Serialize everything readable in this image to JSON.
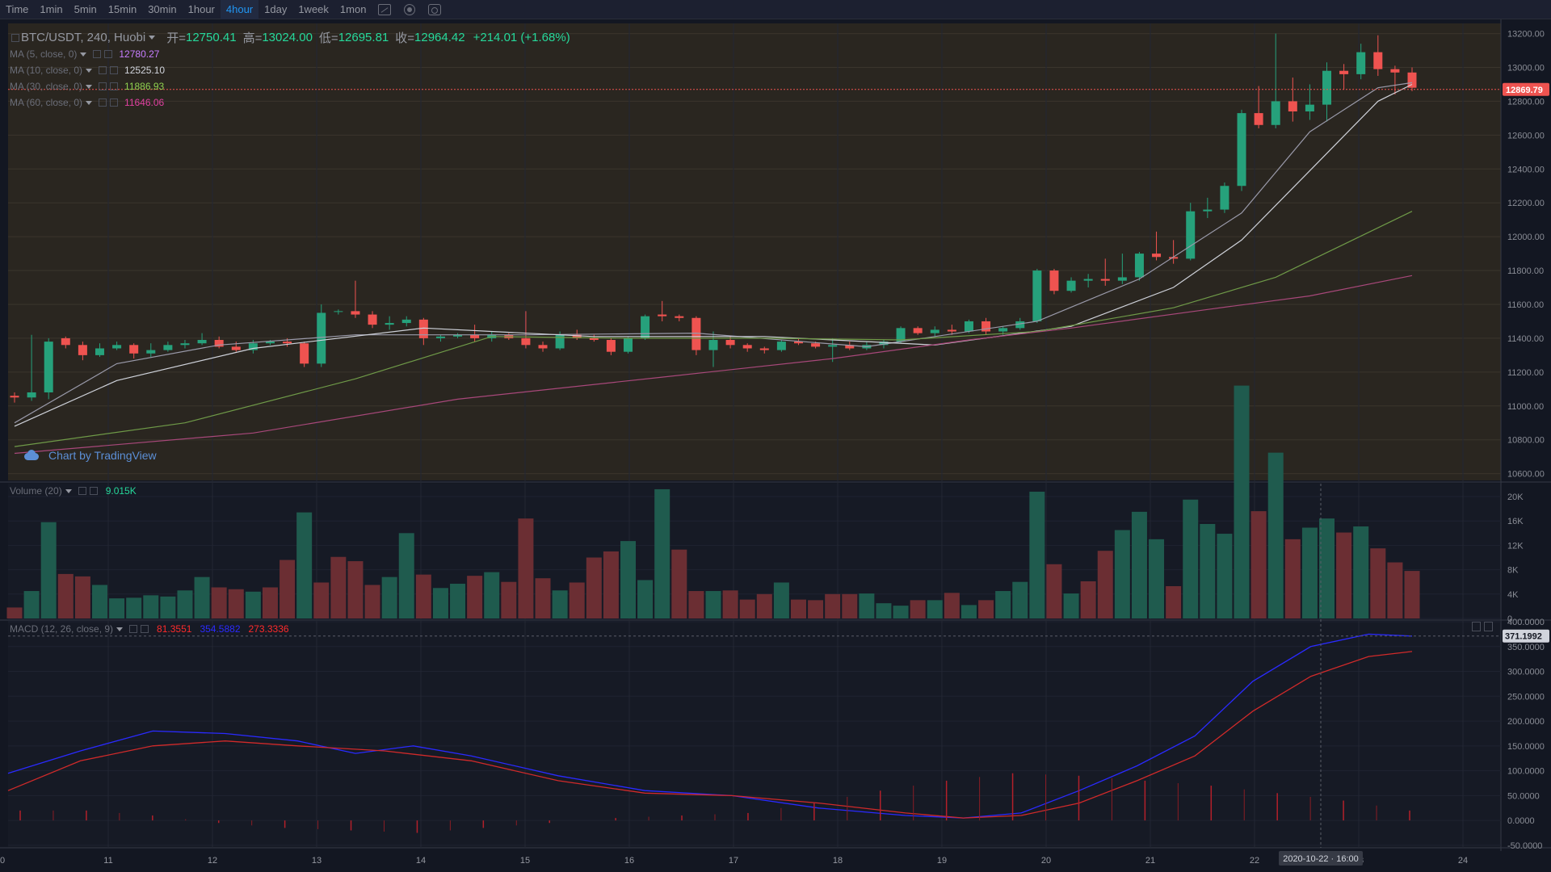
{
  "toolbar": {
    "items": [
      "Time",
      "1min",
      "5min",
      "15min",
      "30min",
      "1hour",
      "4hour",
      "1day",
      "1week",
      "1mon"
    ],
    "active": "4hour",
    "icons": [
      "indicator-icon",
      "gear-icon",
      "screenshot-icon"
    ]
  },
  "legend": {
    "symbol": "BTC/USDT, 240, Huobi",
    "open_label": "开=",
    "open": "12750.41",
    "high_label": "高=",
    "high": "13024.00",
    "low_label": "低=",
    "low": "12695.81",
    "close_label": "收=",
    "close": "12964.42",
    "change": "+214.01 (+1.68%)",
    "ma": [
      {
        "label": "MA (5, close, 0)",
        "value": "12780.27",
        "color": "#c77dff"
      },
      {
        "label": "MA (10, close, 0)",
        "value": "12525.10",
        "color": "#d1d4dc"
      },
      {
        "label": "MA (30, close, 0)",
        "value": "11886.93",
        "color": "#8fd14f"
      },
      {
        "label": "MA (60, close, 0)",
        "value": "11646.06",
        "color": "#e040a0"
      }
    ],
    "volume_label": "Volume (20)",
    "volume_value": "9.015K",
    "macd_label": "MACD (12, 26, close, 9)",
    "macd_values": [
      {
        "value": "81.3551",
        "color": "#ff2a2a"
      },
      {
        "value": "354.5882",
        "color": "#2a2aff"
      },
      {
        "value": "273.3336",
        "color": "#ff2a2a"
      }
    ]
  },
  "watermark": "Chart by TradingView",
  "colors": {
    "up": "#26a17b",
    "down": "#ef5350",
    "bg_price": "#2a2620",
    "bg": "#131722"
  },
  "price_axis": {
    "ticks": [
      13200,
      13000,
      12800,
      12600,
      12400,
      12200,
      12000,
      11800,
      11600,
      11400,
      11200,
      11000,
      10800,
      10600
    ],
    "labels": [
      "13200.00",
      "13000.00",
      "12800.00",
      "12600.00",
      "12400.00",
      "12200.00",
      "12000.00",
      "11800.00",
      "11600.00",
      "11400.00",
      "11200.00",
      "11000.00",
      "10800.00",
      "10600.00"
    ],
    "current": "12869.79"
  },
  "volume_axis": {
    "ticks": [
      20,
      16,
      12,
      8,
      4,
      0
    ],
    "labels": [
      "20K",
      "16K",
      "12K",
      "8K",
      "4K",
      "0"
    ]
  },
  "macd_axis": {
    "ticks": [
      400,
      350,
      300,
      250,
      200,
      150,
      100,
      50,
      0,
      -50
    ],
    "labels": [
      "400.0000",
      "350.0000",
      "300.0000",
      "250.0000",
      "200.0000",
      "150.0000",
      "100.0000",
      "50.0000",
      "0.0000",
      "-50.0000"
    ],
    "current": "371.1992"
  },
  "time_axis": {
    "labels": [
      "0",
      "11",
      "12",
      "13",
      "14",
      "15",
      "16",
      "17",
      "18",
      "19",
      "20",
      "21",
      "22",
      "23",
      "24"
    ],
    "crosshair": "2020-10-22 · 16:00"
  },
  "chart_data": {
    "type": "candlestick",
    "interval": "4h",
    "ohlc": [
      [
        11060,
        11080,
        11020,
        11050
      ],
      [
        11050,
        11420,
        11030,
        11080
      ],
      [
        11080,
        11400,
        11040,
        11380
      ],
      [
        11400,
        11410,
        11340,
        11360
      ],
      [
        11360,
        11380,
        11270,
        11300
      ],
      [
        11300,
        11370,
        11290,
        11340
      ],
      [
        11340,
        11380,
        11330,
        11360
      ],
      [
        11360,
        11370,
        11280,
        11310
      ],
      [
        11310,
        11370,
        11290,
        11330
      ],
      [
        11330,
        11380,
        11320,
        11360
      ],
      [
        11360,
        11390,
        11340,
        11370
      ],
      [
        11370,
        11430,
        11360,
        11390
      ],
      [
        11390,
        11410,
        11340,
        11350
      ],
      [
        11350,
        11380,
        11320,
        11330
      ],
      [
        11330,
        11390,
        11310,
        11370
      ],
      [
        11370,
        11390,
        11360,
        11380
      ],
      [
        11380,
        11400,
        11350,
        11370
      ],
      [
        11370,
        11380,
        11230,
        11250
      ],
      [
        11250,
        11600,
        11230,
        11550
      ],
      [
        11560,
        11570,
        11540,
        11560
      ],
      [
        11560,
        11740,
        11520,
        11540
      ],
      [
        11540,
        11560,
        11460,
        11480
      ],
      [
        11480,
        11530,
        11450,
        11490
      ],
      [
        11490,
        11530,
        11470,
        11510
      ],
      [
        11510,
        11520,
        11360,
        11400
      ],
      [
        11400,
        11420,
        11380,
        11410
      ],
      [
        11410,
        11430,
        11400,
        11420
      ],
      [
        11420,
        11480,
        11380,
        11400
      ],
      [
        11400,
        11440,
        11380,
        11420
      ],
      [
        11420,
        11430,
        11390,
        11400
      ],
      [
        11400,
        11560,
        11340,
        11360
      ],
      [
        11360,
        11380,
        11320,
        11340
      ],
      [
        11340,
        11440,
        11330,
        11420
      ],
      [
        11420,
        11450,
        11390,
        11400
      ],
      [
        11400,
        11420,
        11380,
        11390
      ],
      [
        11390,
        11400,
        11300,
        11320
      ],
      [
        11320,
        11410,
        11310,
        11400
      ],
      [
        11400,
        11540,
        11390,
        11530
      ],
      [
        11540,
        11620,
        11500,
        11530
      ],
      [
        11530,
        11540,
        11500,
        11520
      ],
      [
        11520,
        11530,
        11300,
        11330
      ],
      [
        11330,
        11440,
        11230,
        11390
      ],
      [
        11390,
        11410,
        11340,
        11360
      ],
      [
        11360,
        11370,
        11320,
        11340
      ],
      [
        11340,
        11350,
        11310,
        11330
      ],
      [
        11330,
        11390,
        11320,
        11380
      ],
      [
        11380,
        11400,
        11360,
        11370
      ],
      [
        11370,
        11380,
        11340,
        11350
      ],
      [
        11350,
        11400,
        11260,
        11360
      ],
      [
        11360,
        11380,
        11330,
        11340
      ],
      [
        11340,
        11380,
        11330,
        11360
      ],
      [
        11360,
        11390,
        11340,
        11380
      ],
      [
        11380,
        11470,
        11370,
        11460
      ],
      [
        11460,
        11470,
        11420,
        11430
      ],
      [
        11430,
        11470,
        11410,
        11450
      ],
      [
        11450,
        11480,
        11420,
        11440
      ],
      [
        11440,
        11510,
        11430,
        11500
      ],
      [
        11500,
        11520,
        11420,
        11440
      ],
      [
        11440,
        11470,
        11420,
        11460
      ],
      [
        11460,
        11520,
        11450,
        11500
      ],
      [
        11500,
        11810,
        11490,
        11800
      ],
      [
        11800,
        11810,
        11660,
        11680
      ],
      [
        11680,
        11760,
        11670,
        11740
      ],
      [
        11740,
        11780,
        11700,
        11750
      ],
      [
        11750,
        11870,
        11710,
        11740
      ],
      [
        11740,
        11900,
        11720,
        11760
      ],
      [
        11760,
        11910,
        11740,
        11900
      ],
      [
        11900,
        12030,
        11860,
        11880
      ],
      [
        11880,
        11980,
        11840,
        11870
      ],
      [
        11870,
        12200,
        11860,
        12150
      ],
      [
        12150,
        12230,
        12110,
        12160
      ],
      [
        12160,
        12320,
        12140,
        12300
      ],
      [
        12300,
        12750,
        12270,
        12730
      ],
      [
        12730,
        12890,
        12640,
        12660
      ],
      [
        12660,
        13200,
        12640,
        12800
      ],
      [
        12800,
        12940,
        12680,
        12740
      ],
      [
        12740,
        12900,
        12690,
        12780
      ],
      [
        12780,
        13030,
        12680,
        12980
      ],
      [
        12980,
        13020,
        12870,
        12960
      ],
      [
        12960,
        13140,
        12930,
        13090
      ],
      [
        13090,
        13190,
        12950,
        12990
      ],
      [
        12990,
        13010,
        12840,
        12970
      ],
      [
        12970,
        13000,
        12860,
        12880
      ]
    ],
    "ma": {
      "ma5": [
        [
          0,
          10900
        ],
        [
          6,
          11250
        ],
        [
          12,
          11360
        ],
        [
          20,
          11420
        ],
        [
          30,
          11420
        ],
        [
          40,
          11430
        ],
        [
          50,
          11350
        ],
        [
          60,
          11500
        ],
        [
          66,
          11750
        ],
        [
          72,
          12140
        ],
        [
          76,
          12620
        ],
        [
          80,
          12880
        ],
        [
          82,
          12910
        ]
      ],
      "ma10": [
        [
          0,
          10880
        ],
        [
          6,
          11150
        ],
        [
          14,
          11340
        ],
        [
          24,
          11460
        ],
        [
          34,
          11410
        ],
        [
          44,
          11410
        ],
        [
          54,
          11360
        ],
        [
          62,
          11470
        ],
        [
          68,
          11700
        ],
        [
          72,
          11980
        ],
        [
          76,
          12390
        ],
        [
          80,
          12800
        ],
        [
          82,
          12900
        ]
      ],
      "ma30": [
        [
          0,
          10760
        ],
        [
          10,
          10900
        ],
        [
          20,
          11160
        ],
        [
          28,
          11410
        ],
        [
          36,
          11400
        ],
        [
          44,
          11400
        ],
        [
          52,
          11390
        ],
        [
          60,
          11440
        ],
        [
          68,
          11580
        ],
        [
          74,
          11760
        ],
        [
          82,
          12150
        ]
      ],
      "ma60": [
        [
          0,
          10720
        ],
        [
          14,
          10840
        ],
        [
          26,
          11040
        ],
        [
          38,
          11170
        ],
        [
          48,
          11280
        ],
        [
          56,
          11390
        ],
        [
          62,
          11460
        ],
        [
          70,
          11570
        ],
        [
          76,
          11650
        ],
        [
          82,
          11770
        ]
      ]
    },
    "volume": [
      1.8,
      4.5,
      15.8,
      7.3,
      6.9,
      5.5,
      3.3,
      3.4,
      3.8,
      3.6,
      4.6,
      6.8,
      5.1,
      4.8,
      4.4,
      5.1,
      9.6,
      17.4,
      5.9,
      10.1,
      9.4,
      5.5,
      6.8,
      14.0,
      7.2,
      5.0,
      5.7,
      7.0,
      7.6,
      6.0,
      16.4,
      6.6,
      4.6,
      5.9,
      10.0,
      11.0,
      12.7,
      6.3,
      21.2,
      11.3,
      4.5,
      4.5,
      4.6,
      3.1,
      4.0,
      5.9,
      3.1,
      3.0,
      4.0,
      4.0,
      4.1,
      2.5,
      2.1,
      3.0,
      3.0,
      4.2,
      2.2,
      3.0,
      4.5,
      6.0,
      20.8,
      8.9,
      4.1,
      6.1,
      11.1,
      14.5,
      17.5,
      13.0,
      5.3,
      19.5,
      15.5,
      13.9,
      38.2,
      17.6,
      27.2,
      13.0,
      14.9,
      16.4,
      14.1,
      15.1,
      11.5,
      9.2,
      7.8
    ],
    "volume_up": [
      false,
      true,
      true,
      false,
      false,
      true,
      true,
      true,
      true,
      true,
      true,
      true,
      false,
      false,
      true,
      false,
      false,
      true,
      false,
      false,
      false,
      false,
      true,
      true,
      false,
      true,
      true,
      false,
      true,
      false,
      false,
      false,
      true,
      false,
      false,
      false,
      true,
      true,
      true,
      false,
      false,
      true,
      false,
      false,
      false,
      true,
      false,
      false,
      false,
      false,
      true,
      true,
      true,
      false,
      true,
      false,
      true,
      false,
      true,
      true,
      true,
      false,
      true,
      false,
      false,
      true,
      true,
      true,
      false,
      true,
      true,
      true,
      true,
      false,
      true,
      false,
      true,
      true,
      false,
      true,
      false,
      false,
      false
    ],
    "macd_line": [
      [
        0,
        95
      ],
      [
        5,
        140
      ],
      [
        10,
        180
      ],
      [
        15,
        175
      ],
      [
        20,
        160
      ],
      [
        24,
        135
      ],
      [
        28,
        150
      ],
      [
        32,
        130
      ],
      [
        38,
        90
      ],
      [
        44,
        60
      ],
      [
        50,
        50
      ],
      [
        56,
        25
      ],
      [
        62,
        10
      ],
      [
        66,
        5
      ],
      [
        70,
        15
      ],
      [
        74,
        60
      ],
      [
        78,
        110
      ],
      [
        82,
        170
      ],
      [
        86,
        280
      ],
      [
        90,
        350
      ],
      [
        94,
        375
      ],
      [
        97,
        371
      ]
    ],
    "signal_line": [
      [
        0,
        60
      ],
      [
        5,
        120
      ],
      [
        10,
        150
      ],
      [
        15,
        160
      ],
      [
        20,
        150
      ],
      [
        26,
        140
      ],
      [
        32,
        120
      ],
      [
        38,
        80
      ],
      [
        44,
        55
      ],
      [
        50,
        50
      ],
      [
        56,
        35
      ],
      [
        62,
        15
      ],
      [
        66,
        5
      ],
      [
        70,
        10
      ],
      [
        74,
        35
      ],
      [
        78,
        80
      ],
      [
        82,
        130
      ],
      [
        86,
        220
      ],
      [
        90,
        290
      ],
      [
        94,
        330
      ],
      [
        97,
        340
      ]
    ],
    "macd_hist": [
      20,
      20,
      10,
      -5,
      -15,
      -20,
      -25,
      -15,
      -5,
      5,
      10,
      15,
      35,
      60,
      80,
      95,
      90,
      80,
      70,
      55,
      40,
      20
    ],
    "ylim_price": [
      10560,
      13260
    ],
    "ylim_volume": [
      0,
      20
    ],
    "ylim_macd": [
      -55,
      400
    ]
  }
}
